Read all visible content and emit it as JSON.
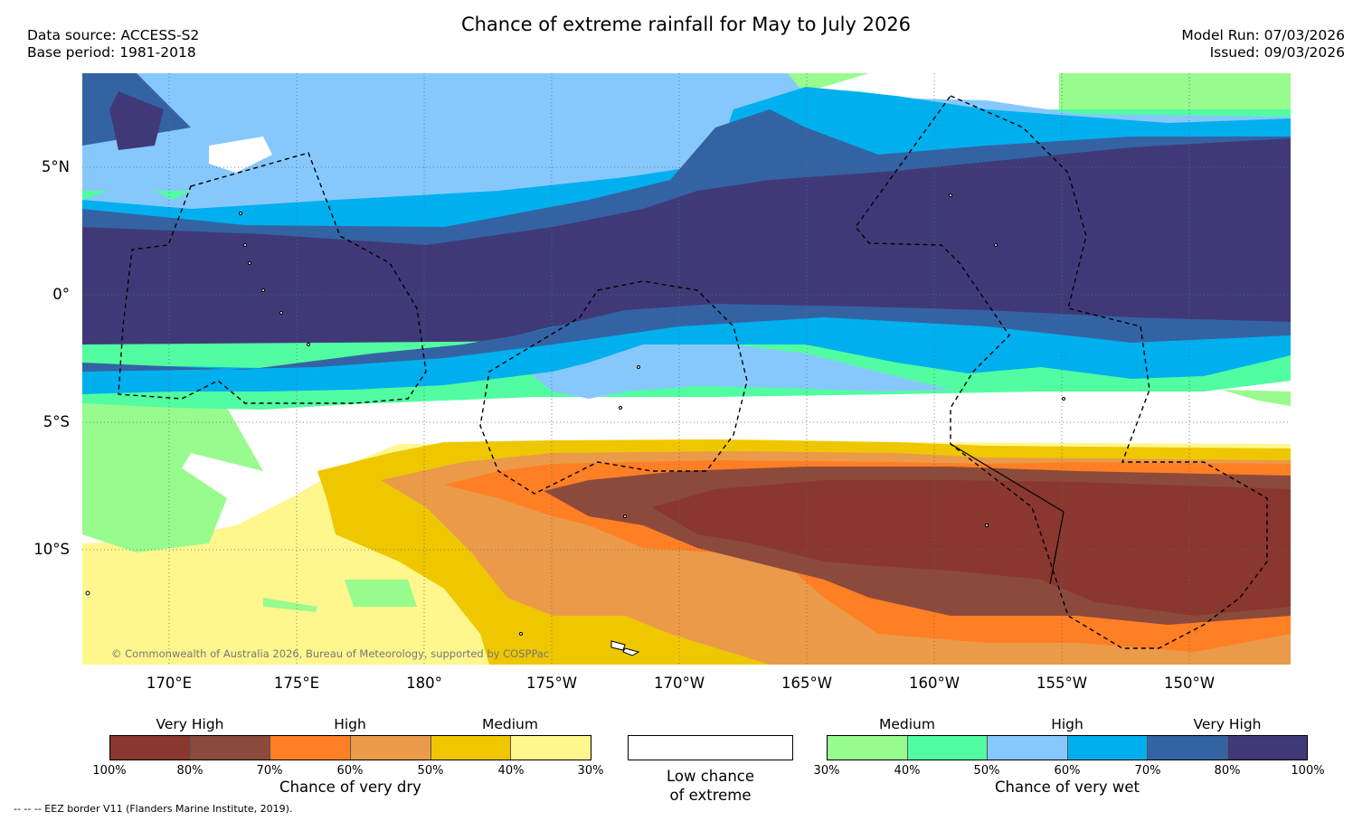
{
  "title": "Chance of extreme rainfall for May to July 2026",
  "header": {
    "data_source": "Data source: ACCESS-S2",
    "base_period": "Base period: 1981-2018",
    "model_run": "Model Run: 07/03/2026",
    "issued": "Issued: 09/03/2026"
  },
  "map": {
    "copyright": "© Commonwealth of Australia 2026, Bureau of Meteorology, supported by COSPPac",
    "lat_ticks": [
      "5°N",
      "0°",
      "5°S",
      "10°S"
    ],
    "lon_ticks": [
      "170°E",
      "175°E",
      "180°",
      "175°W",
      "170°W",
      "165°W",
      "160°W",
      "155°W",
      "150°W"
    ]
  },
  "legend_dry": {
    "title": "Chance of very dry",
    "categories": [
      "Very High",
      "High",
      "Medium"
    ],
    "labels": [
      "100%",
      "80%",
      "70%",
      "60%",
      "50%",
      "40%",
      "30%"
    ],
    "colors": [
      "#8a3730",
      "#8c4a3c",
      "#ff7f24",
      "#eb9a4a",
      "#eec700",
      "#fff78e"
    ]
  },
  "legend_low": {
    "title_line1": "Low chance",
    "title_line2": "of extreme",
    "color": "#ffffff"
  },
  "legend_wet": {
    "title": "Chance of very wet",
    "categories": [
      "Medium",
      "High",
      "Very High"
    ],
    "labels": [
      "30%",
      "40%",
      "50%",
      "60%",
      "70%",
      "80%",
      "100%"
    ],
    "colors": [
      "#98fb8e",
      "#52fda1",
      "#87c8fc",
      "#00b0ee",
      "#3463a4",
      "#3f3a77"
    ]
  },
  "footer": "--  --  -- EEZ border V11 (Flanders Marine Institute, 2019)."
}
